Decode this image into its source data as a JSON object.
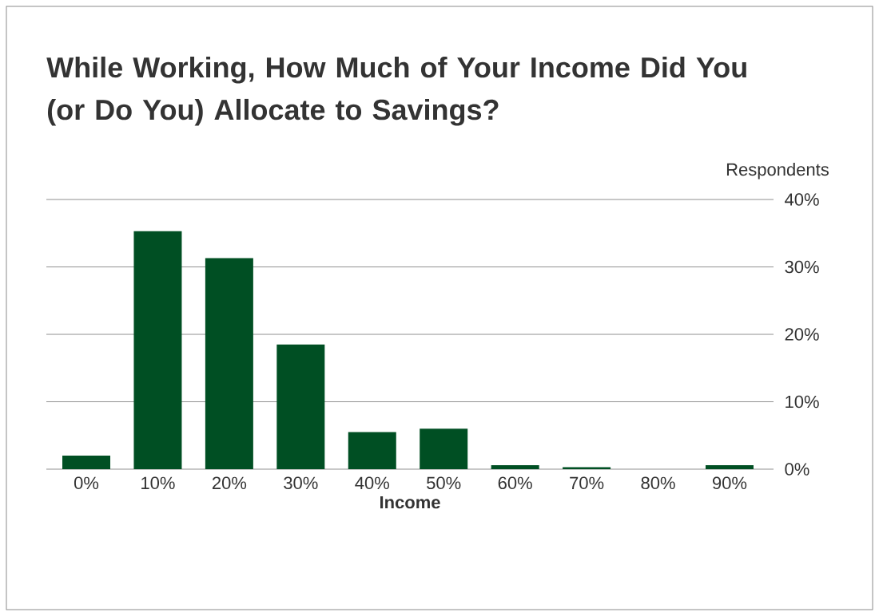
{
  "chart_data": {
    "type": "bar",
    "title": "While Working, How Much of Your Income Did You (or Do You) Allocate to Savings?",
    "xlabel": "Income",
    "ylabel": "Respondents",
    "categories": [
      "0%",
      "10%",
      "20%",
      "30%",
      "40%",
      "50%",
      "60%",
      "70%",
      "80%",
      "90%"
    ],
    "values": [
      2.0,
      35.3,
      31.3,
      18.5,
      5.5,
      6.0,
      0.6,
      0.3,
      0,
      0.6
    ],
    "color": "#004f23",
    "ylim": [
      0,
      40
    ],
    "yticks": [
      {
        "value": 0,
        "label": "0%"
      },
      {
        "value": 10,
        "label": "10%"
      },
      {
        "value": 20,
        "label": "20%"
      },
      {
        "value": 30,
        "label": "30%"
      },
      {
        "value": 40,
        "label": "40%"
      }
    ],
    "grid": "y"
  }
}
